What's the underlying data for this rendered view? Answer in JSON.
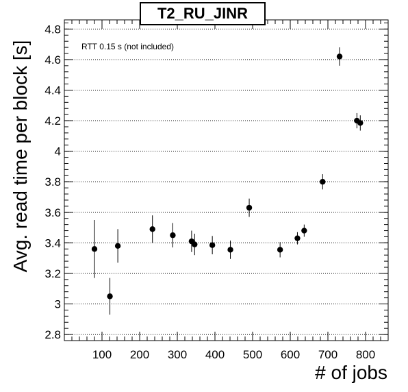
{
  "chart_data": {
    "type": "scatter",
    "title": "T2_RU_JINR",
    "annotation": "RTT 0.15 s (not included)",
    "xlabel": "# of jobs",
    "ylabel": "Avg. read time per block [s]",
    "xlim": [
      0,
      860
    ],
    "ylim": [
      2.76,
      4.86
    ],
    "x_ticks": [
      100,
      200,
      300,
      400,
      500,
      600,
      700,
      800
    ],
    "y_ticks": [
      2.8,
      3,
      3.2,
      3.4,
      3.6,
      3.8,
      4,
      4.2,
      4.4,
      4.6,
      4.8
    ],
    "y_tick_labels": [
      "2.8",
      "3",
      "3.2",
      "3.4",
      "3.6",
      "3.8",
      "4",
      "4.2",
      "4.4",
      "4.6",
      "4.8"
    ],
    "grid": "horizontal dotted",
    "points": [
      {
        "x": 80,
        "y": 3.36,
        "yerr": 0.19
      },
      {
        "x": 121,
        "y": 3.05,
        "yerr": 0.12
      },
      {
        "x": 142,
        "y": 3.38,
        "yerr": 0.11
      },
      {
        "x": 234,
        "y": 3.49,
        "yerr": 0.09
      },
      {
        "x": 288,
        "y": 3.45,
        "yerr": 0.08
      },
      {
        "x": 338,
        "y": 3.41,
        "yerr": 0.07
      },
      {
        "x": 346,
        "y": 3.39,
        "yerr": 0.07
      },
      {
        "x": 393,
        "y": 3.385,
        "yerr": 0.06
      },
      {
        "x": 441,
        "y": 3.355,
        "yerr": 0.06
      },
      {
        "x": 491,
        "y": 3.63,
        "yerr": 0.06
      },
      {
        "x": 573,
        "y": 3.355,
        "yerr": 0.05
      },
      {
        "x": 619,
        "y": 3.43,
        "yerr": 0.04
      },
      {
        "x": 637,
        "y": 3.48,
        "yerr": 0.04
      },
      {
        "x": 686,
        "y": 3.8,
        "yerr": 0.05
      },
      {
        "x": 731,
        "y": 4.62,
        "yerr": 0.06
      },
      {
        "x": 777,
        "y": 4.2,
        "yerr": 0.05
      },
      {
        "x": 786,
        "y": 4.185,
        "yerr": 0.05
      }
    ]
  }
}
